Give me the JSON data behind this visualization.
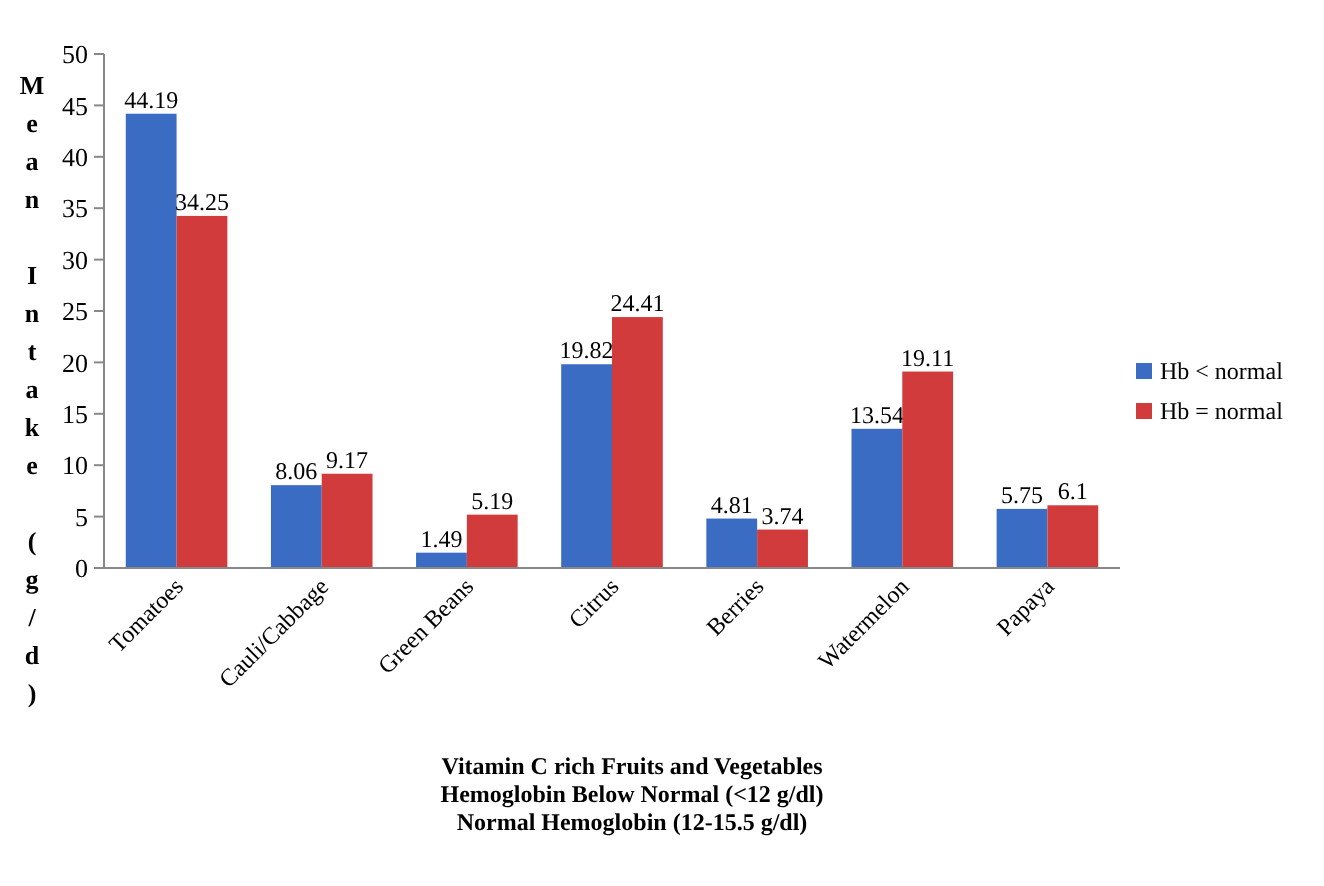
{
  "chart_data": {
    "type": "bar",
    "xlabel": "Vitamin C rich Fruits and Vegetables\nHemoglobin Below Normal (<12 g/dl)\nNormal  Hemoglobin (12-15.5 g/dl)",
    "ylabel": "Mean Intake (g/d)",
    "categories": [
      "Tomatoes",
      "Cauli/Cabbage",
      "Green Beans",
      "Citrus",
      "Berries",
      "Watermelon",
      "Papaya"
    ],
    "series": [
      {
        "name": "Hb < normal",
        "color": "#3a6cc4",
        "values": [
          44.19,
          8.06,
          1.49,
          19.82,
          4.81,
          13.54,
          5.75
        ]
      },
      {
        "name": "Hb = normal",
        "color": "#d13b3b",
        "values": [
          34.25,
          9.17,
          5.19,
          24.41,
          3.74,
          19.11,
          6.1
        ]
      }
    ],
    "ylim": [
      0,
      50
    ],
    "yticks": [
      0,
      5,
      10,
      15,
      20,
      25,
      30,
      35,
      40,
      45,
      50
    ],
    "grid": false,
    "legend": "right",
    "data_labels": true
  }
}
